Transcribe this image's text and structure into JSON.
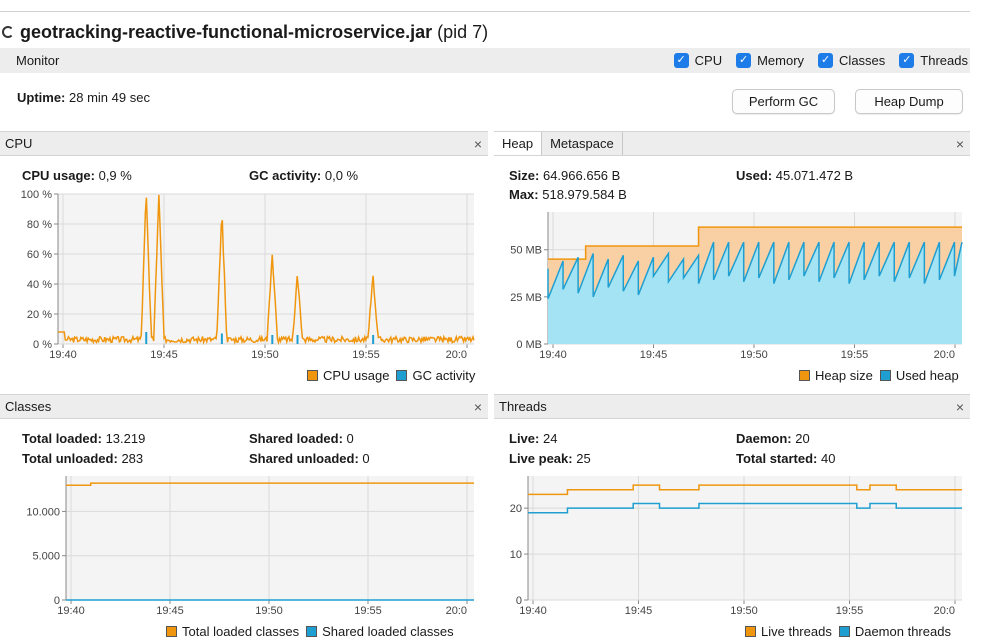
{
  "window": {
    "app_name": "geotracking-reactive-functional-microservice.jar",
    "pid_text": "(pid 7)"
  },
  "monitor": {
    "label": "Monitor",
    "checkboxes": [
      {
        "label": "CPU",
        "checked": true
      },
      {
        "label": "Memory",
        "checked": true
      },
      {
        "label": "Classes",
        "checked": true
      },
      {
        "label": "Threads",
        "checked": true
      }
    ]
  },
  "uptime": {
    "label": "Uptime:",
    "value": "28 min 49 sec"
  },
  "buttons": {
    "perform_gc": "Perform GC",
    "heap_dump": "Heap Dump"
  },
  "colors": {
    "orange": "#f0960e",
    "blue": "#1f9fd1",
    "heap_fill": "#f8ccA0",
    "used_fill": "#9ee1f3"
  },
  "cpu": {
    "title": "CPU",
    "close": "×",
    "usage_label": "CPU usage:",
    "usage_value": "0,9 %",
    "gc_label": "GC activity:",
    "gc_value": "0,0 %",
    "legend": [
      "CPU usage",
      "GC activity"
    ]
  },
  "memory": {
    "tabs": [
      "Heap",
      "Metaspace"
    ],
    "close": "×",
    "size_label": "Size:",
    "size_value": "64.966.656 B",
    "used_label": "Used:",
    "used_value": "45.071.472 B",
    "max_label": "Max:",
    "max_value": "518.979.584 B",
    "legend": [
      "Heap size",
      "Used heap"
    ]
  },
  "classes": {
    "title": "Classes",
    "close": "×",
    "total_loaded_label": "Total loaded:",
    "total_loaded_value": "13.219",
    "total_unloaded_label": "Total unloaded:",
    "total_unloaded_value": "283",
    "shared_loaded_label": "Shared loaded:",
    "shared_loaded_value": "0",
    "shared_unloaded_label": "Shared unloaded:",
    "shared_unloaded_value": "0",
    "legend": [
      "Total loaded classes",
      "Shared loaded classes"
    ]
  },
  "threads": {
    "title": "Threads",
    "close": "×",
    "live_label": "Live:",
    "live_value": "24",
    "daemon_label": "Daemon:",
    "daemon_value": "20",
    "peak_label": "Live peak:",
    "peak_value": "25",
    "started_label": "Total started:",
    "started_value": "40",
    "legend": [
      "Live threads",
      "Daemon threads"
    ]
  },
  "chart_data": [
    {
      "type": "line",
      "name": "cpu",
      "x_ticks": [
        "19:40",
        "19:45",
        "19:50",
        "19:55",
        "20:0"
      ],
      "y_ticks": [
        "0 %",
        "20 %",
        "40 %",
        "60 %",
        "80 %",
        "100 %"
      ],
      "ylim": [
        0,
        100
      ],
      "x_range": [
        19.67,
        20.0
      ],
      "series": [
        {
          "name": "CPU usage",
          "x": [
            19.67,
            19.7,
            19.74,
            19.75,
            19.76,
            19.8,
            19.82,
            19.84,
            19.85,
            19.86,
            19.88,
            19.92,
            19.94,
            19.96,
            20.0
          ],
          "y": [
            8,
            2,
            100,
            97,
            2,
            84,
            3,
            58,
            4,
            44,
            2,
            43,
            2,
            2,
            1
          ]
        },
        {
          "name": "GC activity",
          "x": [
            19.67,
            19.74,
            19.8,
            19.84,
            19.86,
            19.92,
            20.0
          ],
          "y": [
            0,
            8,
            7,
            6,
            6,
            6,
            0
          ]
        }
      ],
      "grid": true
    },
    {
      "type": "area",
      "name": "heap",
      "x_ticks": [
        "19:40",
        "19:45",
        "19:50",
        "19:55",
        "20:0"
      ],
      "y_ticks": [
        "0 MB",
        "25 MB",
        "50 MB"
      ],
      "ylim": [
        0,
        70
      ],
      "series": [
        {
          "name": "Heap size",
          "steps": [
            [
              19.67,
              45
            ],
            [
              19.7,
              45
            ],
            [
              19.7,
              52
            ],
            [
              19.79,
              52
            ],
            [
              19.79,
              62
            ],
            [
              20.0,
              62
            ]
          ]
        },
        {
          "name": "Used heap",
          "sawtooth_min": [
            22,
            35
          ],
          "sawtooth_max": [
            43,
            58
          ]
        }
      ],
      "grid": true
    },
    {
      "type": "line",
      "name": "classes",
      "x_ticks": [
        "19:40",
        "19:45",
        "19:50",
        "19:55",
        "20:0"
      ],
      "y_ticks": [
        "0",
        "5.000",
        "10.000"
      ],
      "ylim": [
        0,
        14000
      ],
      "series": [
        {
          "name": "Total loaded classes",
          "x": [
            19.67,
            19.69,
            19.69,
            20.0
          ],
          "y": [
            12950,
            12950,
            13200,
            13200
          ]
        },
        {
          "name": "Shared loaded classes",
          "x": [
            19.67,
            20.0
          ],
          "y": [
            0,
            0
          ]
        }
      ],
      "grid": true
    },
    {
      "type": "line",
      "name": "threads",
      "x_ticks": [
        "19:40",
        "19:45",
        "19:50",
        "19:55",
        "20:0"
      ],
      "y_ticks": [
        "0",
        "10",
        "20"
      ],
      "ylim": [
        0,
        27
      ],
      "series": [
        {
          "name": "Live threads",
          "steps": [
            [
              19.67,
              23
            ],
            [
              19.7,
              23
            ],
            [
              19.7,
              24
            ],
            [
              19.75,
              24
            ],
            [
              19.75,
              25
            ],
            [
              19.77,
              25
            ],
            [
              19.77,
              24
            ],
            [
              19.8,
              24
            ],
            [
              19.8,
              25
            ],
            [
              19.92,
              25
            ],
            [
              19.92,
              24
            ],
            [
              19.93,
              24
            ],
            [
              19.93,
              25
            ],
            [
              19.95,
              25
            ],
            [
              19.95,
              24
            ],
            [
              20.0,
              24
            ]
          ]
        },
        {
          "name": "Daemon threads",
          "steps": [
            [
              19.67,
              19
            ],
            [
              19.7,
              19
            ],
            [
              19.7,
              20
            ],
            [
              19.75,
              20
            ],
            [
              19.75,
              21
            ],
            [
              19.77,
              21
            ],
            [
              19.77,
              20
            ],
            [
              19.8,
              20
            ],
            [
              19.8,
              21
            ],
            [
              19.92,
              21
            ],
            [
              19.92,
              20
            ],
            [
              19.93,
              20
            ],
            [
              19.93,
              21
            ],
            [
              19.95,
              21
            ],
            [
              19.95,
              20
            ],
            [
              20.0,
              20
            ]
          ]
        }
      ],
      "grid": true
    }
  ]
}
